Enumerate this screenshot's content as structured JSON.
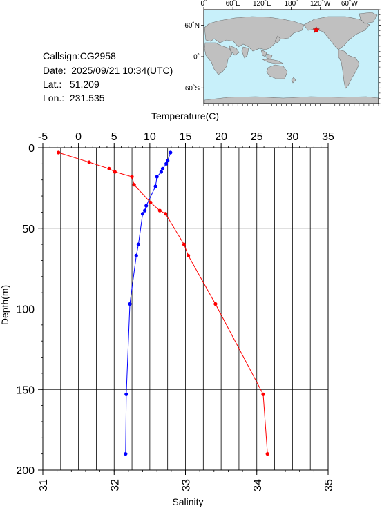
{
  "station": {
    "callsign_label": "Callsign:CG2958",
    "date_label": "Date:  2025/09/21 10:34(UTC)",
    "lat_label": "Lat.:   51.209",
    "lon_label": "Lon.:  231.535"
  },
  "map": {
    "lon_ticks": [
      "0˚",
      "60˚E",
      "120˚E",
      "180˚",
      "120˚W",
      "60˚W"
    ],
    "lat_ticks": [
      "60˚N",
      "0˚",
      "60˚S"
    ],
    "colors": {
      "ocean": "#c8f0fa",
      "land": "#c0c0c0",
      "marker": "#ff0000"
    },
    "marker_lon": 231.535,
    "marker_lat": 51.209
  },
  "chart_data": {
    "type": "line",
    "ylabel": "Depth(m)",
    "xlabel_top": "Temperature(C)",
    "xlabel_bottom": "Salinity",
    "ylim": [
      0,
      200
    ],
    "y_ticks": [
      0,
      50,
      100,
      150,
      200
    ],
    "temperature_range": [
      -5,
      35
    ],
    "temperature_ticks": [
      -5,
      0,
      5,
      10,
      15,
      20,
      25,
      30,
      35
    ],
    "salinity_range": [
      31,
      35
    ],
    "salinity_ticks": [
      31,
      32,
      33,
      34,
      35
    ],
    "grid": true,
    "series": [
      {
        "axis": "temperature",
        "color": "#ff0000",
        "points": [
          {
            "x": -2.8,
            "y": 3
          },
          {
            "x": 1.5,
            "y": 9
          },
          {
            "x": 4.3,
            "y": 13
          },
          {
            "x": 5.1,
            "y": 15
          },
          {
            "x": 7.5,
            "y": 18
          },
          {
            "x": 7.8,
            "y": 23
          },
          {
            "x": 10.1,
            "y": 34
          },
          {
            "x": 11.4,
            "y": 39
          },
          {
            "x": 12.2,
            "y": 41
          },
          {
            "x": 14.8,
            "y": 60
          },
          {
            "x": 15.4,
            "y": 67
          },
          {
            "x": 19.2,
            "y": 97
          },
          {
            "x": 25.9,
            "y": 153
          },
          {
            "x": 26.5,
            "y": 190
          }
        ]
      },
      {
        "axis": "salinity",
        "color": "#0000ff",
        "points": [
          {
            "x": 32.79,
            "y": 3
          },
          {
            "x": 32.75,
            "y": 8
          },
          {
            "x": 32.73,
            "y": 10
          },
          {
            "x": 32.68,
            "y": 13
          },
          {
            "x": 32.66,
            "y": 15
          },
          {
            "x": 32.6,
            "y": 18
          },
          {
            "x": 32.58,
            "y": 24
          },
          {
            "x": 32.45,
            "y": 36
          },
          {
            "x": 32.43,
            "y": 39
          },
          {
            "x": 32.4,
            "y": 41
          },
          {
            "x": 32.34,
            "y": 60
          },
          {
            "x": 32.31,
            "y": 67
          },
          {
            "x": 32.22,
            "y": 97
          },
          {
            "x": 32.17,
            "y": 153
          },
          {
            "x": 32.16,
            "y": 190
          }
        ]
      }
    ]
  }
}
